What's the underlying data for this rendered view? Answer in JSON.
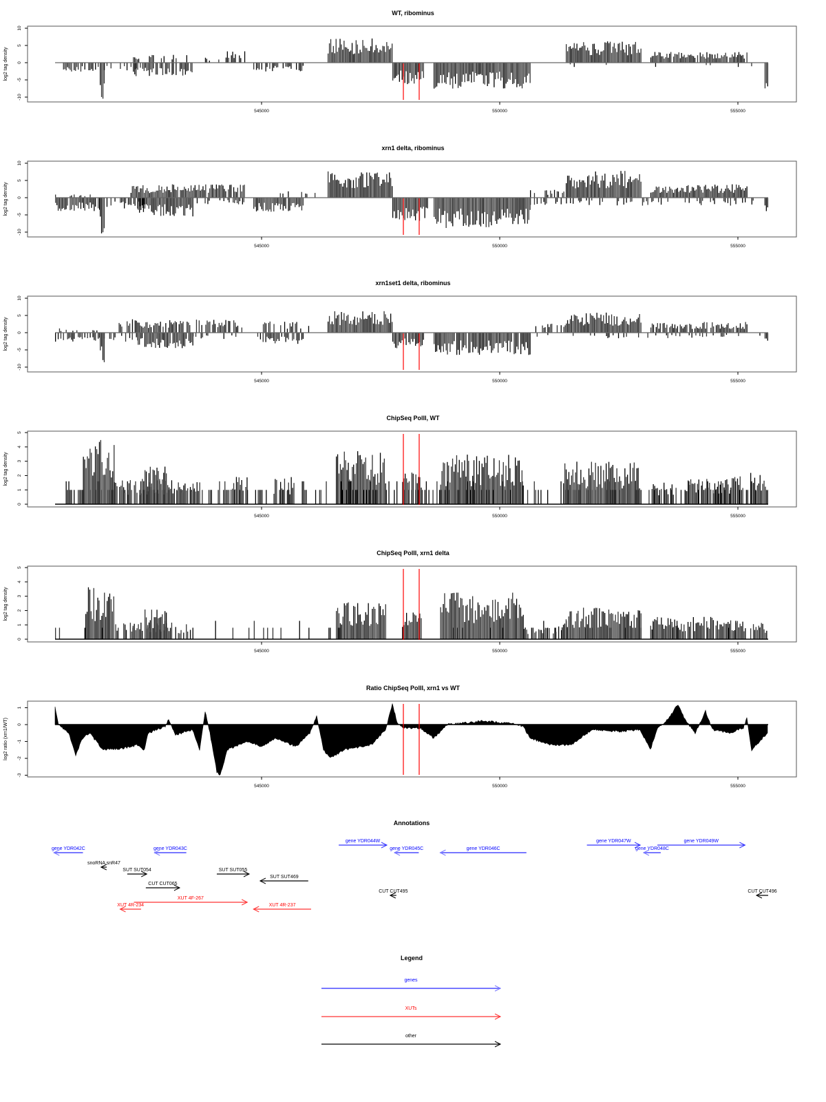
{
  "colors": {
    "bar": "#000000",
    "marker": "#ff0000",
    "gene_fwd": "#3333ff",
    "gene_rev": "#7777ff",
    "gene_text": "#0000ff",
    "xut": "#ff3333",
    "other": "#000000"
  },
  "chart_data": [
    {
      "type": "bar",
      "title": "WT, ribominus",
      "ylabel": "log2 tag density",
      "ylim": [
        -11.4,
        10.6
      ],
      "yticks": [
        10,
        5,
        0,
        -5,
        -10
      ],
      "xticks": [
        545000,
        550000,
        555000
      ],
      "xlim": [
        540665,
        555636
      ],
      "markers": [
        547977,
        548309
      ],
      "baseline": true,
      "seed": 11,
      "segments": [
        {
          "from": 540665,
          "to": 541604,
          "level": -2.2,
          "density": 0.5
        },
        {
          "from": 541604,
          "to": 541690,
          "level": -8.5,
          "density": 1
        },
        {
          "from": 541690,
          "to": 542540,
          "level": -1.8,
          "density": 0.35
        },
        {
          "from": 542300,
          "to": 543555,
          "level": -3,
          "density": 0.7
        },
        {
          "from": 542300,
          "to": 543555,
          "level": 1.8,
          "density": 0.35
        },
        {
          "from": 543700,
          "to": 544133,
          "level": 1.2,
          "density": 0.15
        },
        {
          "from": 544133,
          "to": 544639,
          "level": 2.8,
          "density": 0.6
        },
        {
          "from": 544827,
          "to": 545867,
          "level": -2,
          "density": 0.6
        },
        {
          "from": 546387,
          "to": 547746,
          "level": 5.5,
          "density": 1
        },
        {
          "from": 547746,
          "to": 548396,
          "level": -4.8,
          "density": 1
        },
        {
          "from": 548613,
          "to": 550636,
          "level": -5.8,
          "density": 1
        },
        {
          "from": 550636,
          "to": 551387,
          "level": 1,
          "density": 0.12
        },
        {
          "from": 551387,
          "to": 552976,
          "level": 4.8,
          "density": 1
        },
        {
          "from": 553164,
          "to": 555188,
          "level": 2.4,
          "density": 0.95
        },
        {
          "from": 551387,
          "to": 555500,
          "level": -1,
          "density": 0.06
        },
        {
          "from": 555560,
          "to": 555636,
          "level": -6.5,
          "density": 1
        }
      ]
    },
    {
      "type": "bar",
      "title": "xrn1 delta, ribominus",
      "ylabel": "log2 tag density",
      "ylim": [
        -11.4,
        10.6
      ],
      "yticks": [
        10,
        5,
        0,
        -5,
        -10
      ],
      "xticks": [
        545000,
        550000,
        555000
      ],
      "xlim": [
        540665,
        555636
      ],
      "markers": [
        547977,
        548309
      ],
      "baseline": true,
      "seed": 23,
      "segments": [
        {
          "from": 540665,
          "to": 541604,
          "level": -3,
          "density": 0.9
        },
        {
          "from": 540665,
          "to": 541604,
          "level": 0.8,
          "density": 0.2
        },
        {
          "from": 541604,
          "to": 541690,
          "level": -9,
          "density": 1
        },
        {
          "from": 541690,
          "to": 542540,
          "level": -2.5,
          "density": 0.6
        },
        {
          "from": 542250,
          "to": 544639,
          "level": 3,
          "density": 0.95
        },
        {
          "from": 542400,
          "to": 543555,
          "level": -4.2,
          "density": 1
        },
        {
          "from": 543555,
          "to": 544639,
          "level": -1.5,
          "density": 0.4
        },
        {
          "from": 544827,
          "to": 545867,
          "level": -3.2,
          "density": 0.9
        },
        {
          "from": 545300,
          "to": 546200,
          "level": 1.6,
          "density": 0.35
        },
        {
          "from": 546387,
          "to": 547746,
          "level": 6,
          "density": 1
        },
        {
          "from": 547746,
          "to": 548480,
          "level": -5.2,
          "density": 1
        },
        {
          "from": 548613,
          "to": 550636,
          "level": -6.8,
          "density": 1
        },
        {
          "from": 550636,
          "to": 551387,
          "level": 1.8,
          "density": 0.4
        },
        {
          "from": 550636,
          "to": 555500,
          "level": -1.8,
          "density": 0.25
        },
        {
          "from": 551387,
          "to": 552976,
          "level": 6,
          "density": 1
        },
        {
          "from": 553164,
          "to": 555188,
          "level": 3,
          "density": 1
        },
        {
          "from": 555560,
          "to": 555636,
          "level": -5,
          "density": 1
        }
      ]
    },
    {
      "type": "bar",
      "title": "xrn1set1 delta, ribominus",
      "ylabel": "log2 tag density",
      "ylim": [
        -11.4,
        10.6
      ],
      "yticks": [
        10,
        5,
        0,
        -5,
        -10
      ],
      "xticks": [
        545000,
        550000,
        555000
      ],
      "xlim": [
        540665,
        555636
      ],
      "markers": [
        547977,
        548309
      ],
      "baseline": true,
      "seed": 37,
      "segments": [
        {
          "from": 540665,
          "to": 541604,
          "level": -2,
          "density": 0.7
        },
        {
          "from": 540665,
          "to": 541604,
          "level": 1,
          "density": 0.15
        },
        {
          "from": 541604,
          "to": 541690,
          "level": -7.5,
          "density": 1
        },
        {
          "from": 541690,
          "to": 542540,
          "level": -2,
          "density": 0.5
        },
        {
          "from": 542000,
          "to": 544639,
          "level": 3,
          "density": 0.7
        },
        {
          "from": 542400,
          "to": 543555,
          "level": -3.5,
          "density": 0.9
        },
        {
          "from": 543555,
          "to": 544639,
          "level": -1.5,
          "density": 0.35
        },
        {
          "from": 544827,
          "to": 545867,
          "level": -2.5,
          "density": 0.7
        },
        {
          "from": 545000,
          "to": 546000,
          "level": 2.5,
          "density": 0.4
        },
        {
          "from": 546387,
          "to": 547746,
          "level": 4.8,
          "density": 1
        },
        {
          "from": 547746,
          "to": 548396,
          "level": -3.5,
          "density": 0.95
        },
        {
          "from": 548613,
          "to": 550636,
          "level": -5,
          "density": 0.95
        },
        {
          "from": 550636,
          "to": 551387,
          "level": 2.2,
          "density": 0.4
        },
        {
          "from": 550636,
          "to": 555500,
          "level": -1.3,
          "density": 0.2
        },
        {
          "from": 551387,
          "to": 552976,
          "level": 4.5,
          "density": 1
        },
        {
          "from": 553164,
          "to": 555188,
          "level": 2.4,
          "density": 0.8
        },
        {
          "from": 555560,
          "to": 555636,
          "level": -3.2,
          "density": 1
        }
      ]
    },
    {
      "type": "bar",
      "title": "ChipSeq PolII, WT",
      "ylabel": "log2 tag density",
      "ylim": [
        -0.19,
        5.1
      ],
      "yticks": [
        5,
        4,
        3,
        2,
        1,
        0
      ],
      "xticks": [
        545000,
        550000,
        555000
      ],
      "xlim": [
        540665,
        555636
      ],
      "markers": [
        547977,
        548309
      ],
      "baseline": false,
      "seed": 41,
      "segments": [
        {
          "from": 540665,
          "to": 555636,
          "level": 1,
          "density": 0.35,
          "quantize": true
        },
        {
          "from": 541250,
          "to": 541900,
          "level": 3.6,
          "density": 1
        },
        {
          "from": 541900,
          "to": 543700,
          "level": 1.4,
          "density": 0.8
        },
        {
          "from": 542543,
          "to": 543000,
          "level": 2.2,
          "density": 1
        },
        {
          "from": 544350,
          "to": 544700,
          "level": 1.5,
          "density": 0.8
        },
        {
          "from": 545250,
          "to": 545700,
          "level": 1.5,
          "density": 0.8
        },
        {
          "from": 546560,
          "to": 547600,
          "level": 2.9,
          "density": 1
        },
        {
          "from": 547950,
          "to": 548350,
          "level": 1.8,
          "density": 0.9
        },
        {
          "from": 548750,
          "to": 550500,
          "level": 2.7,
          "density": 1
        },
        {
          "from": 551330,
          "to": 552950,
          "level": 2.3,
          "density": 1
        },
        {
          "from": 553160,
          "to": 553700,
          "level": 1.2,
          "density": 0.7
        },
        {
          "from": 553890,
          "to": 555120,
          "level": 1.5,
          "density": 0.95
        },
        {
          "from": 555260,
          "to": 555620,
          "level": 1.7,
          "density": 1
        }
      ]
    },
    {
      "type": "bar",
      "title": "ChipSeq PolII, xrn1 delta",
      "ylabel": "log2 tag density",
      "ylim": [
        -0.19,
        5.1
      ],
      "yticks": [
        5,
        4,
        3,
        2,
        1,
        0
      ],
      "xticks": [
        545000,
        550000,
        555000
      ],
      "xlim": [
        540665,
        555636
      ],
      "markers": [
        547977,
        548309
      ],
      "baseline": false,
      "seed": 53,
      "segments": [
        {
          "from": 540665,
          "to": 555636,
          "level": 0.8,
          "density": 0.08,
          "quantize": true
        },
        {
          "from": 541300,
          "to": 541900,
          "level": 2.8,
          "density": 1
        },
        {
          "from": 541900,
          "to": 543555,
          "level": 0.9,
          "density": 0.7
        },
        {
          "from": 542543,
          "to": 543000,
          "level": 1.7,
          "density": 1
        },
        {
          "from": 546560,
          "to": 547600,
          "level": 2,
          "density": 1
        },
        {
          "from": 547950,
          "to": 548350,
          "level": 1.5,
          "density": 1
        },
        {
          "from": 548750,
          "to": 550500,
          "level": 2.5,
          "density": 1
        },
        {
          "from": 550500,
          "to": 551300,
          "level": 0.7,
          "density": 0.5
        },
        {
          "from": 551300,
          "to": 552950,
          "level": 1.7,
          "density": 1
        },
        {
          "from": 552900,
          "to": 552976,
          "level": 2,
          "density": 1
        },
        {
          "from": 553160,
          "to": 555150,
          "level": 1.2,
          "density": 0.9
        },
        {
          "from": 555260,
          "to": 555620,
          "level": 1,
          "density": 0.9
        }
      ]
    },
    {
      "type": "area",
      "title": "Ratio ChipSeq PolII, xrn1 vs WT",
      "ylabel": "log2 ratio (xrn1/WT)",
      "ylim": [
        -3.1,
        1.39
      ],
      "yticks": [
        1,
        0,
        -1,
        -2,
        -3
      ],
      "xticks": [
        545000,
        550000,
        555000
      ],
      "xlim": [
        540665,
        555636
      ],
      "markers": [
        547977,
        548309
      ],
      "baseline": false,
      "seed": 67,
      "x": [
        540665,
        540737,
        540954,
        541098,
        541243,
        541387,
        541676,
        542110,
        542399,
        542543,
        542616,
        542977,
        543049,
        543194,
        543555,
        543700,
        543815,
        543916,
        544061,
        544133,
        544278,
        544711,
        545000,
        545289,
        545723,
        546012,
        546156,
        546301,
        546445,
        546734,
        547312,
        547601,
        547746,
        547861,
        548035,
        548324,
        548613,
        548902,
        549624,
        550202,
        550491,
        550636,
        551069,
        551503,
        551936,
        552514,
        552948,
        553164,
        553309,
        553526,
        553743,
        553887,
        554104,
        554321,
        554465,
        554826,
        555115,
        555188,
        555289,
        555621
      ],
      "y": [
        1,
        0,
        -0.5,
        -1.8,
        -0.8,
        -0.5,
        -1.5,
        -1.4,
        -1.2,
        -1.5,
        -0.5,
        -0.1,
        0.3,
        -0.6,
        -0.3,
        -1.5,
        0.8,
        -0.5,
        -2.8,
        -3,
        -1.5,
        -1,
        -1.3,
        -0.8,
        -1.3,
        -0.5,
        0.5,
        -1.5,
        -2,
        -1.5,
        -1.2,
        -0.3,
        1.2,
        0,
        -0.2,
        -0.2,
        -0.8,
        0,
        0.2,
        0.1,
        -0.1,
        -0.8,
        -1.2,
        -1.2,
        -0.3,
        -0.4,
        -0.3,
        -1.5,
        -0.2,
        0.3,
        1.2,
        0.3,
        -0.5,
        0.8,
        -0.3,
        -0.5,
        -0.2,
        0.4,
        -1.5,
        -0.5
      ]
    }
  ],
  "annotations": {
    "title": "Annotations",
    "features": [
      {
        "label": "gene YDR042C",
        "kind": "gene",
        "start": 540640,
        "end": 541250,
        "strand": "-",
        "lane": 1
      },
      {
        "label": "gene YDR043C",
        "kind": "gene",
        "start": 542750,
        "end": 543420,
        "strand": "-",
        "lane": 1
      },
      {
        "label": "gene YDR044W",
        "kind": "gene",
        "start": 546620,
        "end": 547630,
        "strand": "+",
        "lane": 0
      },
      {
        "label": "gene YDR045C",
        "kind": "gene",
        "start": 547790,
        "end": 548300,
        "strand": "-",
        "lane": 1
      },
      {
        "label": "gene YDR046C",
        "kind": "gene",
        "start": 548750,
        "end": 550560,
        "strand": "-",
        "lane": 1
      },
      {
        "label": "gene YDR047W",
        "kind": "gene",
        "start": 551830,
        "end": 552950,
        "strand": "+",
        "lane": 0
      },
      {
        "label": "gene YDR048C",
        "kind": "gene",
        "start": 553020,
        "end": 553380,
        "strand": "-",
        "lane": 1
      },
      {
        "label": "gene YDR049W",
        "kind": "gene",
        "start": 553310,
        "end": 555150,
        "strand": "+",
        "lane": 0
      },
      {
        "label": "snoRNA snR47",
        "kind": "other",
        "start": 541630,
        "end": 541750,
        "strand": "-",
        "lane": 3
      },
      {
        "label": "SUT SUT054",
        "kind": "other",
        "start": 542180,
        "end": 542590,
        "strand": "+",
        "lane": 4
      },
      {
        "label": "SUT SUT055",
        "kind": "other",
        "start": 544060,
        "end": 544740,
        "strand": "+",
        "lane": 4
      },
      {
        "label": "SUT SUT469",
        "kind": "other",
        "start": 544970,
        "end": 545980,
        "strand": "-",
        "lane": 5
      },
      {
        "label": "CUT CUT065",
        "kind": "other",
        "start": 542570,
        "end": 543280,
        "strand": "+",
        "lane": 6
      },
      {
        "label": "CUT CUT495",
        "kind": "other",
        "start": 547700,
        "end": 547830,
        "strand": "-",
        "lane": 7
      },
      {
        "label": "CUT CUT496",
        "kind": "other",
        "start": 555390,
        "end": 555636,
        "strand": "-",
        "lane": 7
      },
      {
        "label": "XUT 4F-267",
        "kind": "xut",
        "start": 542320,
        "end": 544700,
        "strand": "+",
        "lane": 8
      },
      {
        "label": "XUT 4R-234",
        "kind": "xut",
        "start": 542030,
        "end": 542470,
        "strand": "-",
        "lane": 9
      },
      {
        "label": "XUT 4R-237",
        "kind": "xut",
        "start": 544830,
        "end": 546040,
        "strand": "-",
        "lane": 9
      }
    ]
  },
  "legend": {
    "title": "Legend",
    "items": [
      {
        "label": "genes",
        "kind": "gene"
      },
      {
        "label": "XUTs",
        "kind": "xut"
      },
      {
        "label": "other",
        "kind": "other"
      }
    ]
  }
}
